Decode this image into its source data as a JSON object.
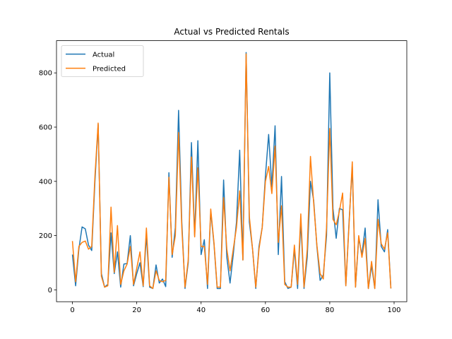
{
  "chart_data": {
    "type": "line",
    "title": "Actual vs Predicted Rentals",
    "x": [
      0,
      1,
      2,
      3,
      4,
      5,
      6,
      7,
      8,
      9,
      10,
      11,
      12,
      13,
      14,
      15,
      16,
      17,
      18,
      19,
      20,
      21,
      22,
      23,
      24,
      25,
      26,
      27,
      28,
      29,
      30,
      31,
      32,
      33,
      34,
      35,
      36,
      37,
      38,
      39,
      40,
      41,
      42,
      43,
      44,
      45,
      46,
      47,
      48,
      49,
      50,
      51,
      52,
      53,
      54,
      55,
      56,
      57,
      58,
      59,
      60,
      61,
      62,
      63,
      64,
      65,
      66,
      67,
      68,
      69,
      70,
      71,
      72,
      73,
      74,
      75,
      76,
      77,
      78,
      79,
      80,
      81,
      82,
      83,
      84,
      85,
      86,
      87,
      88,
      89,
      90,
      91,
      92,
      93,
      94,
      95,
      96,
      97,
      98,
      99
    ],
    "series": [
      {
        "name": "Actual",
        "color": "#1f77b4",
        "values": [
          130,
          15,
          150,
          232,
          225,
          165,
          145,
          400,
          610,
          60,
          10,
          20,
          210,
          60,
          140,
          10,
          95,
          97,
          200,
          15,
          60,
          100,
          12,
          200,
          10,
          5,
          92,
          25,
          40,
          12,
          432,
          120,
          230,
          662,
          250,
          5,
          100,
          543,
          200,
          550,
          130,
          185,
          5,
          290,
          170,
          5,
          5,
          405,
          120,
          25,
          130,
          250,
          515,
          110,
          875,
          250,
          150,
          5,
          160,
          230,
          420,
          573,
          380,
          605,
          130,
          418,
          30,
          5,
          10,
          150,
          5,
          250,
          5,
          120,
          400,
          330,
          160,
          35,
          55,
          200,
          800,
          300,
          190,
          300,
          295,
          15,
          250,
          455,
          10,
          190,
          130,
          228,
          5,
          90,
          5,
          332,
          160,
          140,
          222,
          5
        ]
      },
      {
        "name": "Predicted",
        "color": "#ff7f0e",
        "values": [
          180,
          30,
          160,
          175,
          180,
          150,
          160,
          420,
          615,
          50,
          10,
          15,
          305,
          65,
          237,
          20,
          70,
          95,
          160,
          20,
          80,
          140,
          15,
          228,
          15,
          5,
          70,
          35,
          30,
          35,
          415,
          130,
          200,
          580,
          230,
          10,
          110,
          490,
          195,
          450,
          160,
          160,
          20,
          298,
          175,
          10,
          10,
          340,
          150,
          70,
          150,
          230,
          365,
          110,
          870,
          270,
          150,
          10,
          150,
          230,
          400,
          455,
          355,
          530,
          175,
          310,
          20,
          10,
          10,
          165,
          20,
          280,
          10,
          150,
          492,
          320,
          165,
          60,
          40,
          230,
          595,
          260,
          240,
          290,
          357,
          15,
          240,
          472,
          10,
          200,
          120,
          190,
          5,
          105,
          5,
          260,
          170,
          150,
          210,
          5
        ]
      }
    ],
    "xlim": [
      -4.95,
      103.95
    ],
    "ylim": [
      -43.75,
      918.75
    ],
    "xticks": [
      0,
      20,
      40,
      60,
      80,
      100
    ],
    "yticks": [
      0,
      200,
      400,
      600,
      800
    ],
    "legend": "upper left",
    "grid": false
  }
}
